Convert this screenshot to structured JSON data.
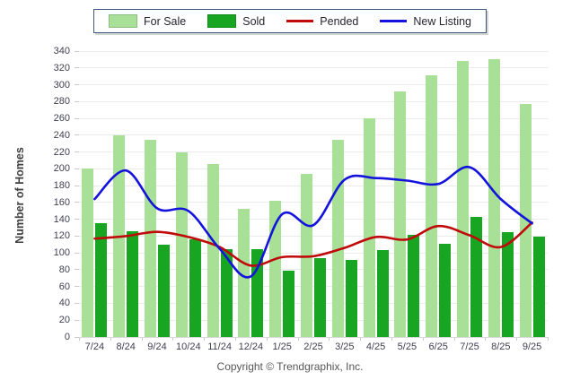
{
  "chart_data": {
    "type": "bar",
    "categories": [
      "7/24",
      "8/24",
      "9/24",
      "10/24",
      "11/24",
      "12/24",
      "1/25",
      "2/25",
      "3/25",
      "4/25",
      "5/25",
      "6/25",
      "7/25",
      "8/25",
      "9/25"
    ],
    "series": [
      {
        "name": "For Sale",
        "type": "bar",
        "color": "#a7e096",
        "values": [
          200,
          240,
          234,
          220,
          206,
          152,
          162,
          194,
          234,
          260,
          292,
          311,
          328,
          330,
          277
        ]
      },
      {
        "name": "Sold",
        "type": "bar",
        "color": "#17a522",
        "values": [
          135,
          126,
          110,
          116,
          104,
          105,
          79,
          94,
          92,
          103,
          121,
          111,
          143,
          125,
          119
        ]
      },
      {
        "name": "Pended",
        "type": "line",
        "color": "#c00a0a",
        "values": [
          117,
          120,
          125,
          119,
          107,
          85,
          95,
          96,
          106,
          119,
          116,
          132,
          121,
          107,
          136
        ]
      },
      {
        "name": "New Listing",
        "type": "line",
        "color": "#1313dd",
        "values": [
          164,
          198,
          153,
          150,
          105,
          72,
          146,
          133,
          187,
          189,
          186,
          182,
          202,
          164,
          135
        ]
      }
    ],
    "title": "",
    "xlabel": "",
    "ylabel": "Number of Homes",
    "ylim": [
      0,
      340
    ],
    "ytick_step": 20,
    "grid": true,
    "legend_position": "top"
  },
  "footer": {
    "copyright": "Copyright © Trendgraphix, Inc."
  }
}
